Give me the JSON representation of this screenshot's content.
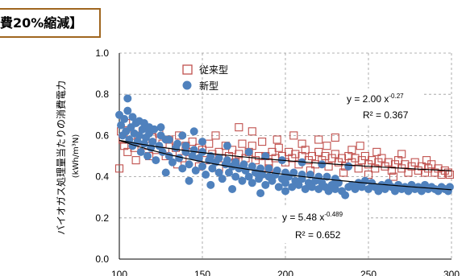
{
  "title": "費20%縮減】",
  "chart_data": {
    "type": "scatter",
    "xlabel": "",
    "ylabel": "バイオガス処理量当たりの消費電力",
    "ylabel_unit": "(kWh/m³N)",
    "xlim": [
      100,
      300
    ],
    "ylim": [
      0.0,
      1.0
    ],
    "x_ticks": [
      "100",
      "150",
      "200",
      "250",
      "300"
    ],
    "y_ticks": [
      "0.0",
      "0.2",
      "0.4",
      "0.6",
      "0.8",
      "1.0"
    ],
    "grid": "dashed",
    "legend_position": "top-left",
    "series": [
      {
        "name": "従来型",
        "marker": "hollow-square",
        "color": "#c0504d",
        "trend": {
          "a": 2.0,
          "b": -0.27,
          "equation": "y = 2.00 x",
          "exponent": "-0.27",
          "r2": "R² = 0.367"
        },
        "points": [
          [
            100,
            0.44
          ],
          [
            101,
            0.62
          ],
          [
            102,
            0.58
          ],
          [
            103,
            0.55
          ],
          [
            104,
            0.66
          ],
          [
            105,
            0.52
          ],
          [
            107,
            0.6
          ],
          [
            109,
            0.54
          ],
          [
            110,
            0.48
          ],
          [
            112,
            0.57
          ],
          [
            114,
            0.62
          ],
          [
            116,
            0.55
          ],
          [
            118,
            0.5
          ],
          [
            120,
            0.59
          ],
          [
            122,
            0.53
          ],
          [
            124,
            0.61
          ],
          [
            126,
            0.56
          ],
          [
            128,
            0.5
          ],
          [
            130,
            0.58
          ],
          [
            132,
            0.52
          ],
          [
            134,
            0.54
          ],
          [
            136,
            0.6
          ],
          [
            138,
            0.49
          ],
          [
            140,
            0.55
          ],
          [
            142,
            0.52
          ],
          [
            144,
            0.57
          ],
          [
            146,
            0.5
          ],
          [
            148,
            0.54
          ],
          [
            150,
            0.53
          ],
          [
            152,
            0.48
          ],
          [
            154,
            0.56
          ],
          [
            156,
            0.51
          ],
          [
            158,
            0.6
          ],
          [
            160,
            0.52
          ],
          [
            162,
            0.49
          ],
          [
            164,
            0.55
          ],
          [
            166,
            0.5
          ],
          [
            168,
            0.53
          ],
          [
            170,
            0.47
          ],
          [
            172,
            0.51
          ],
          [
            174,
            0.56
          ],
          [
            176,
            0.49
          ],
          [
            178,
            0.52
          ],
          [
            180,
            0.55
          ],
          [
            182,
            0.48
          ],
          [
            184,
            0.5
          ],
          [
            186,
            0.57
          ],
          [
            188,
            0.5
          ],
          [
            190,
            0.47
          ],
          [
            192,
            0.52
          ],
          [
            194,
            0.49
          ],
          [
            196,
            0.54
          ],
          [
            198,
            0.5
          ],
          [
            200,
            0.47
          ],
          [
            202,
            0.52
          ],
          [
            204,
            0.49
          ],
          [
            206,
            0.51
          ],
          [
            208,
            0.46
          ],
          [
            210,
            0.5
          ],
          [
            212,
            0.53
          ],
          [
            214,
            0.48
          ],
          [
            216,
            0.5
          ],
          [
            218,
            0.46
          ],
          [
            220,
            0.52
          ],
          [
            222,
            0.48
          ],
          [
            224,
            0.5
          ],
          [
            226,
            0.45
          ],
          [
            228,
            0.49
          ],
          [
            230,
            0.51
          ],
          [
            232,
            0.47
          ],
          [
            234,
            0.49
          ],
          [
            236,
            0.45
          ],
          [
            238,
            0.5
          ],
          [
            240,
            0.47
          ],
          [
            242,
            0.49
          ],
          [
            244,
            0.44
          ],
          [
            246,
            0.48
          ],
          [
            248,
            0.5
          ],
          [
            250,
            0.46
          ],
          [
            252,
            0.48
          ],
          [
            254,
            0.44
          ],
          [
            256,
            0.47
          ],
          [
            258,
            0.49
          ],
          [
            260,
            0.45
          ],
          [
            262,
            0.47
          ],
          [
            264,
            0.43
          ],
          [
            266,
            0.46
          ],
          [
            268,
            0.48
          ],
          [
            270,
            0.44
          ],
          [
            272,
            0.46
          ],
          [
            274,
            0.42
          ],
          [
            276,
            0.45
          ],
          [
            278,
            0.47
          ],
          [
            280,
            0.43
          ],
          [
            282,
            0.45
          ],
          [
            284,
            0.42
          ],
          [
            286,
            0.44
          ],
          [
            288,
            0.46
          ],
          [
            290,
            0.42
          ],
          [
            292,
            0.44
          ],
          [
            294,
            0.41
          ],
          [
            296,
            0.43
          ],
          [
            298,
            0.42
          ],
          [
            299,
            0.41
          ],
          [
            180,
            0.62
          ],
          [
            195,
            0.58
          ],
          [
            210,
            0.56
          ],
          [
            225,
            0.55
          ],
          [
            240,
            0.53
          ],
          [
            255,
            0.52
          ],
          [
            270,
            0.51
          ],
          [
            285,
            0.48
          ],
          [
            190,
            0.44
          ],
          [
            215,
            0.43
          ],
          [
            235,
            0.42
          ],
          [
            250,
            0.41
          ],
          [
            265,
            0.4
          ],
          [
            135,
            0.46
          ],
          [
            148,
            0.45
          ],
          [
            160,
            0.44
          ],
          [
            172,
            0.64
          ],
          [
            205,
            0.6
          ],
          [
            220,
            0.58
          ],
          [
            230,
            0.59
          ],
          [
            245,
            0.55
          ]
        ]
      },
      {
        "name": "新型",
        "marker": "filled-circle",
        "color": "#4f81bd",
        "trend": {
          "a": 5.48,
          "b": -0.489,
          "equation": "y = 5.48 x",
          "exponent": "-0.489",
          "r2": "R² = 0.652"
        },
        "points": [
          [
            100,
            0.7
          ],
          [
            101,
            0.65
          ],
          [
            102,
            0.6
          ],
          [
            103,
            0.68
          ],
          [
            104,
            0.62
          ],
          [
            105,
            0.78
          ],
          [
            106,
            0.58
          ],
          [
            107,
            0.64
          ],
          [
            108,
            0.55
          ],
          [
            109,
            0.61
          ],
          [
            110,
            0.66
          ],
          [
            111,
            0.57
          ],
          [
            112,
            0.6
          ],
          [
            113,
            0.52
          ],
          [
            114,
            0.63
          ],
          [
            115,
            0.56
          ],
          [
            116,
            0.59
          ],
          [
            117,
            0.5
          ],
          [
            118,
            0.61
          ],
          [
            119,
            0.54
          ],
          [
            120,
            0.57
          ],
          [
            122,
            0.48
          ],
          [
            124,
            0.55
          ],
          [
            126,
            0.52
          ],
          [
            128,
            0.58
          ],
          [
            130,
            0.5
          ],
          [
            132,
            0.47
          ],
          [
            134,
            0.54
          ],
          [
            136,
            0.49
          ],
          [
            138,
            0.44
          ],
          [
            140,
            0.52
          ],
          [
            142,
            0.46
          ],
          [
            144,
            0.5
          ],
          [
            146,
            0.43
          ],
          [
            148,
            0.49
          ],
          [
            150,
            0.45
          ],
          [
            152,
            0.41
          ],
          [
            154,
            0.48
          ],
          [
            156,
            0.44
          ],
          [
            158,
            0.47
          ],
          [
            160,
            0.42
          ],
          [
            162,
            0.39
          ],
          [
            164,
            0.46
          ],
          [
            166,
            0.42
          ],
          [
            168,
            0.45
          ],
          [
            170,
            0.4
          ],
          [
            172,
            0.44
          ],
          [
            174,
            0.38
          ],
          [
            176,
            0.43
          ],
          [
            178,
            0.4
          ],
          [
            180,
            0.37
          ],
          [
            182,
            0.42
          ],
          [
            184,
            0.39
          ],
          [
            186,
            0.41
          ],
          [
            188,
            0.36
          ],
          [
            190,
            0.4
          ],
          [
            192,
            0.38
          ],
          [
            194,
            0.41
          ],
          [
            196,
            0.35
          ],
          [
            198,
            0.39
          ],
          [
            200,
            0.37
          ],
          [
            202,
            0.4
          ],
          [
            204,
            0.35
          ],
          [
            206,
            0.38
          ],
          [
            208,
            0.36
          ],
          [
            210,
            0.39
          ],
          [
            212,
            0.34
          ],
          [
            214,
            0.37
          ],
          [
            216,
            0.35
          ],
          [
            218,
            0.38
          ],
          [
            220,
            0.34
          ],
          [
            222,
            0.37
          ],
          [
            224,
            0.35
          ],
          [
            226,
            0.33
          ],
          [
            228,
            0.36
          ],
          [
            230,
            0.34
          ],
          [
            232,
            0.37
          ],
          [
            234,
            0.33
          ],
          [
            236,
            0.31
          ],
          [
            238,
            0.35
          ],
          [
            240,
            0.36
          ],
          [
            242,
            0.34
          ],
          [
            244,
            0.37
          ],
          [
            246,
            0.35
          ],
          [
            248,
            0.38
          ],
          [
            250,
            0.34
          ],
          [
            252,
            0.37
          ],
          [
            254,
            0.35
          ],
          [
            256,
            0.33
          ],
          [
            258,
            0.36
          ],
          [
            260,
            0.34
          ],
          [
            262,
            0.37
          ],
          [
            264,
            0.35
          ],
          [
            266,
            0.33
          ],
          [
            268,
            0.36
          ],
          [
            270,
            0.34
          ],
          [
            272,
            0.35
          ],
          [
            274,
            0.33
          ],
          [
            276,
            0.36
          ],
          [
            278,
            0.34
          ],
          [
            280,
            0.35
          ],
          [
            282,
            0.33
          ],
          [
            284,
            0.36
          ],
          [
            286,
            0.34
          ],
          [
            288,
            0.35
          ],
          [
            290,
            0.34
          ],
          [
            292,
            0.33
          ],
          [
            294,
            0.35
          ],
          [
            296,
            0.34
          ],
          [
            298,
            0.33
          ],
          [
            299,
            0.35
          ],
          [
            105,
            0.72
          ],
          [
            108,
            0.69
          ],
          [
            112,
            0.67
          ],
          [
            115,
            0.66
          ],
          [
            118,
            0.64
          ],
          [
            121,
            0.63
          ],
          [
            125,
            0.6
          ],
          [
            130,
            0.58
          ],
          [
            135,
            0.56
          ],
          [
            140,
            0.55
          ],
          [
            145,
            0.53
          ],
          [
            150,
            0.52
          ],
          [
            155,
            0.5
          ],
          [
            160,
            0.49
          ],
          [
            165,
            0.48
          ],
          [
            170,
            0.47
          ],
          [
            175,
            0.46
          ],
          [
            180,
            0.45
          ],
          [
            185,
            0.44
          ],
          [
            190,
            0.44
          ],
          [
            195,
            0.43
          ],
          [
            200,
            0.42
          ],
          [
            205,
            0.42
          ],
          [
            210,
            0.41
          ],
          [
            215,
            0.41
          ],
          [
            220,
            0.4
          ],
          [
            225,
            0.4
          ],
          [
            230,
            0.39
          ],
          [
            128,
            0.42
          ],
          [
            142,
            0.38
          ],
          [
            155,
            0.36
          ],
          [
            168,
            0.34
          ],
          [
            185,
            0.32
          ],
          [
            200,
            0.33
          ],
          [
            125,
            0.64
          ],
          [
            138,
            0.6
          ],
          [
            150,
            0.57
          ],
          [
            165,
            0.55
          ],
          [
            178,
            0.52
          ],
          [
            188,
            0.5
          ],
          [
            198,
            0.48
          ],
          [
            210,
            0.47
          ],
          [
            222,
            0.46
          ],
          [
            238,
            0.45
          ],
          [
            145,
            0.62
          ]
        ]
      }
    ]
  }
}
